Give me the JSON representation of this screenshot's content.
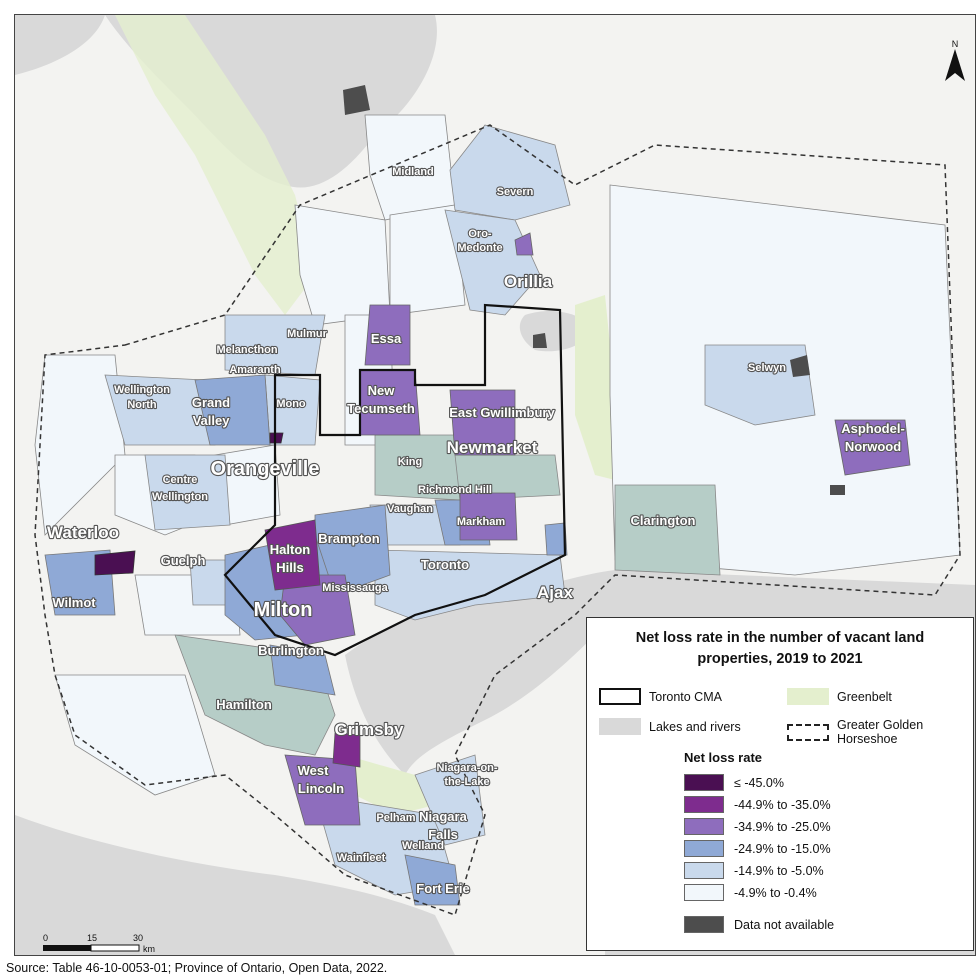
{
  "legend": {
    "title": "Net loss rate in the number of vacant land properties, 2019 to 2021",
    "items": [
      {
        "label": "Toronto CMA"
      },
      {
        "label": "Greenbelt",
        "color": "#e4efce"
      },
      {
        "label": "Lakes and rivers",
        "color": "#d9d9d9"
      },
      {
        "label": "Greater Golden Horseshoe"
      }
    ],
    "subtitle": "Net loss rate",
    "classes": [
      {
        "label": "≤ -45.0%",
        "color": "#4a0f52"
      },
      {
        "label": "-44.9% to -35.0%",
        "color": "#7e2c8e"
      },
      {
        "label": "-34.9% to -25.0%",
        "color": "#8e6dbd"
      },
      {
        "label": "-24.9% to -15.0%",
        "color": "#8fa9d6"
      },
      {
        "label": "-14.9% to -5.0%",
        "color": "#c9d9ec"
      },
      {
        "label": "-4.9% to -0.4%",
        "color": "#f2f7fb"
      },
      {
        "label": "Data not available",
        "color": "#4d4d4d"
      }
    ]
  },
  "north": {
    "label": "N"
  },
  "scale": {
    "ticks": [
      "0",
      "15",
      "30"
    ],
    "unit": "km"
  },
  "source": "Source: Table 46-10-0053-01; Province of Ontario, Open Data, 2022.",
  "places": {
    "midland": "Midland",
    "severn": "Severn",
    "oro1": "Oro-",
    "oro2": "Medonte",
    "orillia": "Orillia",
    "essa": "Essa",
    "mulmur": "Mulmur",
    "melancthon": "Melancthon",
    "amaranth": "Amaranth",
    "wn1": "Wellington",
    "wn2": "North",
    "gv1": "Grand",
    "gv2": "Valley",
    "mono": "Mono",
    "nt1": "New",
    "nt2": "Tecumseth",
    "eg": "East Gwillimbury",
    "newmarket": "Newmarket",
    "selwyn": "Selwyn",
    "an1": "Asphodel-",
    "an2": "Norwood",
    "orangeville": "Orangeville",
    "king": "King",
    "richmondhill": "Richmond Hill",
    "vaughan": "Vaughan",
    "markham": "Markham",
    "cw1": "Centre",
    "cw2": "Wellington",
    "clarington": "Clarington",
    "waterloo": "Waterloo",
    "guelph": "Guelph",
    "hh1": "Halton",
    "hh2": "Hills",
    "brampton": "Brampton",
    "toronto": "Toronto",
    "ajax": "Ajax",
    "mississauga": "Mississauga",
    "wilmot": "Wilmot",
    "milton": "Milton",
    "burlington": "Burlington",
    "hamilton": "Hamilton",
    "grimsby": "Grimsby",
    "wl1": "West",
    "wl2": "Lincoln",
    "notl1": "Niagara-on-",
    "notl2": "the-Lake",
    "pelham": "Pelham",
    "nf1": "Niagara",
    "nf2": "Falls",
    "welland": "Welland",
    "wainfleet": "Wainfleet",
    "forterie": "Fort Erie"
  }
}
